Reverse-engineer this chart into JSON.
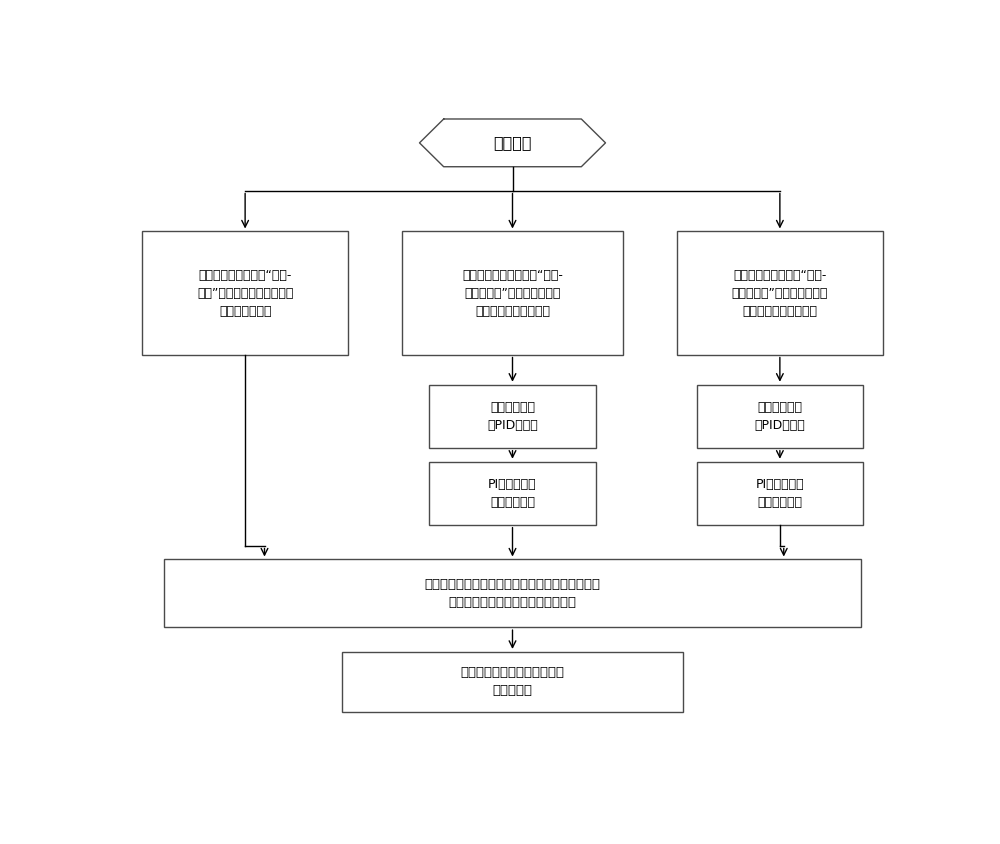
{
  "bg_color": "#ffffff",
  "border_color": "#4a4a4a",
  "text_color": "#000000",
  "arrow_color": "#000000",
  "title": "开始起动",
  "box1_text": "将实时转速测量値与“转速-\n开度”曲线进行匹配，得到第\n一燃调阀开度；",
  "box2_text": "根据实时转速测量値与“转速-\n转速爬坡率”曲线进行匹配，\n获得对应的转速爬坡率",
  "box3_text": "将实时转速测量値与“转速-\n温度爬坡率”曲线进行匹配，\n获得对应的温度爬坡率",
  "box4_text": "计算出当前转\n速PID给定値",
  "box5_text": "PI计算得到第\n二燃调阀开度",
  "box6_text": "计算出当前温\n度PID给定値",
  "box7_text": "PI计算得到第\n三燃调阀开度",
  "box8_text": "取第一燃调阀开度、第二燃调阀开度和第三燃调阀\n开度中的最小値作为最终燃调阀开度",
  "box9_text": "根据最终燃调阀开度给燃气轮\n机提供燃料"
}
